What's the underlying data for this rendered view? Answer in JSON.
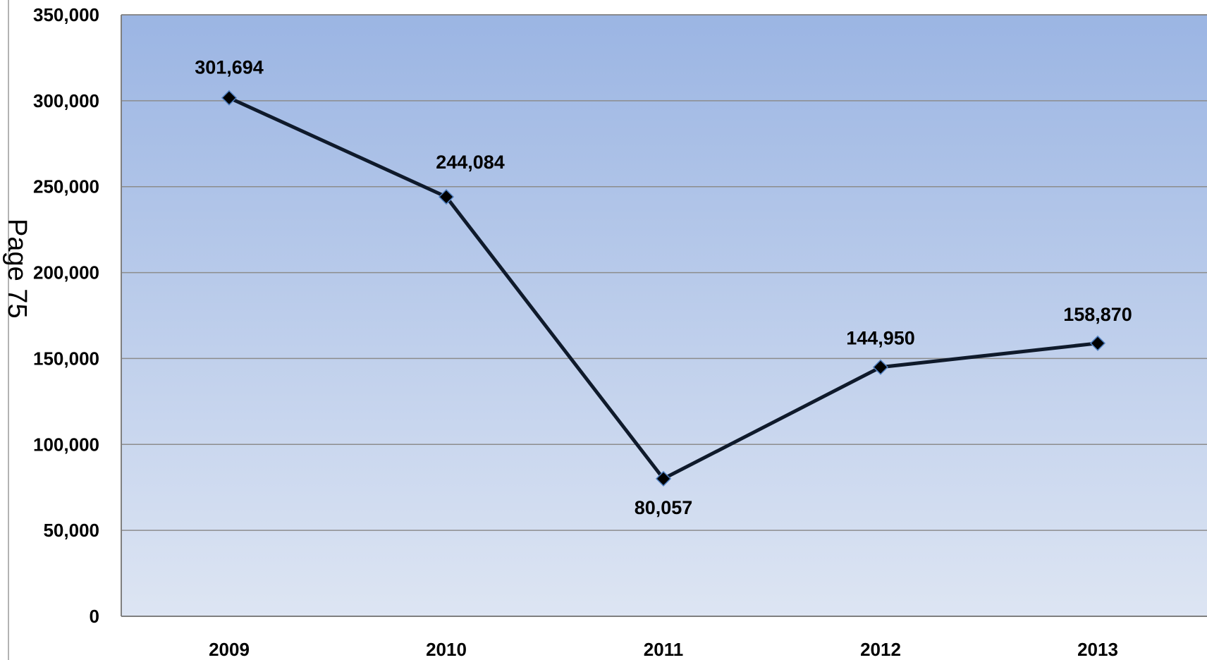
{
  "page_label": "Page 75",
  "colors": {
    "plot_top": "#9bb5e3",
    "plot_bottom": "#dde5f3",
    "line": "#0f1a2b",
    "marker": "#000000",
    "marker_outline": "#4f7fc0",
    "grid": "#8c8c8c",
    "axis": "#7f7f7f"
  },
  "chart_data": {
    "type": "line",
    "categories": [
      "2009",
      "2010",
      "2011",
      "2012",
      "2013"
    ],
    "values": [
      301694,
      244084,
      80057,
      144950,
      158870
    ],
    "data_labels": [
      "301,694",
      "244,084",
      "80,057",
      "144,950",
      "158,870"
    ],
    "title": "",
    "xlabel": "",
    "ylabel": "",
    "ylim": [
      0,
      350000
    ],
    "yticks": [
      0,
      50000,
      100000,
      150000,
      200000,
      250000,
      300000,
      350000
    ],
    "ytick_labels": [
      "0",
      "50,000",
      "100,000",
      "150,000",
      "200,000",
      "250,000",
      "300,000",
      "350,000"
    ],
    "marker": "diamond",
    "grid": true,
    "legend": "none"
  }
}
